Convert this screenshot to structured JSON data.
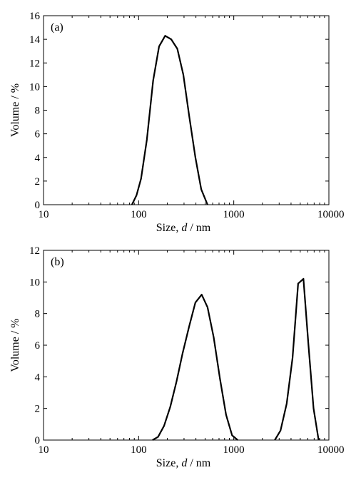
{
  "chart_data": [
    {
      "type": "line",
      "panel_label": "(a)",
      "xlabel_prefix": "Size, ",
      "xlabel_italic": "d",
      "xlabel_suffix": " / nm",
      "ylabel": "Volume / %",
      "xscale": "log",
      "xlim": [
        10,
        10000
      ],
      "ylim": [
        0,
        16
      ],
      "xticks": [
        10,
        100,
        1000,
        10000
      ],
      "xtick_labels": [
        "10",
        "100",
        "1000",
        "10000"
      ],
      "yticks": [
        0,
        2,
        4,
        6,
        8,
        10,
        12,
        14,
        16
      ],
      "ytick_labels": [
        "0",
        "2",
        "4",
        "6",
        "8",
        "10",
        "12",
        "14",
        "16"
      ],
      "grid": false,
      "series": [
        {
          "x": [
            85,
            95,
            106,
            122,
            142,
            164,
            190,
            220,
            255,
            295,
            340,
            395,
            455,
            530
          ],
          "y": [
            0,
            0.8,
            2.2,
            5.5,
            10.5,
            13.4,
            14.3,
            14.0,
            13.2,
            11.0,
            7.5,
            4.0,
            1.3,
            0
          ]
        }
      ]
    },
    {
      "type": "line",
      "panel_label": "(b)",
      "xlabel_prefix": "Size, ",
      "xlabel_italic": "d",
      "xlabel_suffix": " / nm",
      "ylabel": "Volume / %",
      "xscale": "log",
      "xlim": [
        10,
        10000
      ],
      "ylim": [
        0,
        12
      ],
      "xticks": [
        10,
        100,
        1000,
        10000
      ],
      "xtick_labels": [
        "10",
        "100",
        "1000",
        "10000"
      ],
      "yticks": [
        0,
        2,
        4,
        6,
        8,
        10,
        12
      ],
      "ytick_labels": [
        "0",
        "2",
        "4",
        "6",
        "8",
        "10",
        "12"
      ],
      "grid": false,
      "series": [
        {
          "x": [
            140,
            160,
            185,
            215,
            250,
            290,
            340,
            395,
            460,
            530,
            615,
            715,
            830,
            960,
            1100
          ],
          "y": [
            0,
            0.2,
            0.9,
            2.1,
            3.7,
            5.5,
            7.2,
            8.7,
            9.2,
            8.4,
            6.5,
            3.9,
            1.6,
            0.3,
            0
          ]
        },
        {
          "x": [
            2700,
            3100,
            3600,
            4150,
            4750,
            5400,
            6100,
            6900,
            7800
          ],
          "y": [
            0,
            0.6,
            2.3,
            5.2,
            9.9,
            10.2,
            6.0,
            2.0,
            0
          ]
        }
      ]
    }
  ]
}
